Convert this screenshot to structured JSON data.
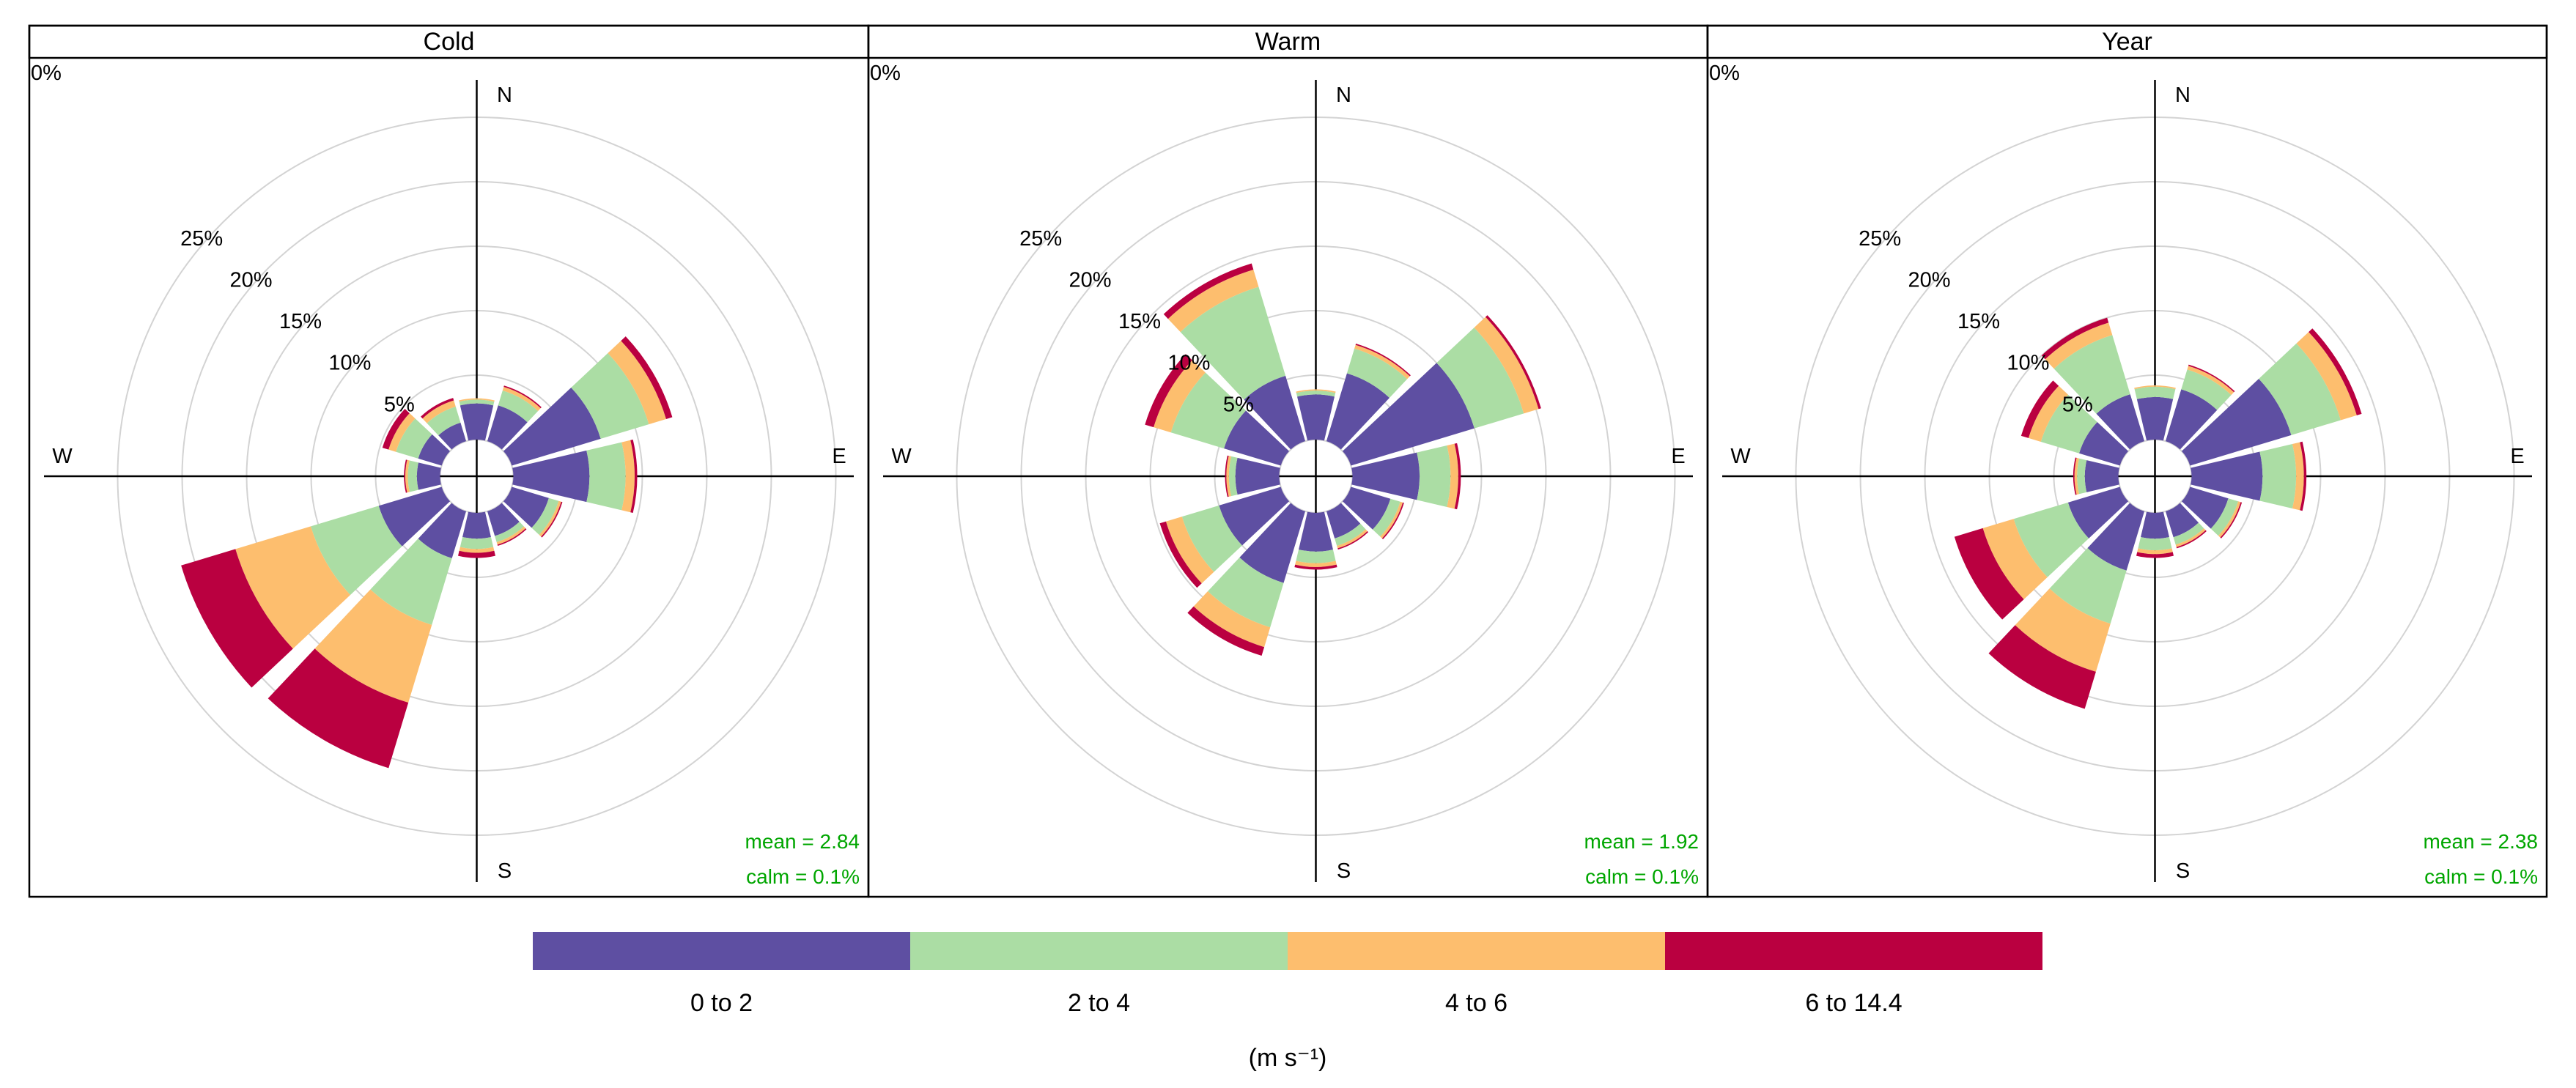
{
  "chart_data": {
    "type": "windrose",
    "radial_unit": "%",
    "radial_ticks": [
      0,
      5,
      10,
      15,
      20,
      25
    ],
    "radial_tick_labels": [
      "0%",
      "5%",
      "10%",
      "15%",
      "20%",
      "25%"
    ],
    "directions": [
      0,
      30,
      60,
      90,
      120,
      150,
      180,
      210,
      240,
      270,
      300,
      330
    ],
    "compass_labels": [
      "N",
      "E",
      "S",
      "W"
    ],
    "speed_bins": [
      {
        "label": "0 to 2",
        "color": "#5E4FA2"
      },
      {
        "label": "2 to 4",
        "color": "#ABDDA4"
      },
      {
        "label": "4 to 6",
        "color": "#FDBE6E"
      },
      {
        "label": "6 to 14.4",
        "color": "#BA0040"
      }
    ],
    "legend_title": "(m s⁻¹)",
    "legend_position": "bottom",
    "panels": [
      {
        "title": "Cold",
        "mean_text": "mean = 2.84",
        "calm_text": "calm = 0.1%",
        "values": [
          [
            2.8,
            0.3,
            0.1,
            0.0
          ],
          [
            2.9,
            1.2,
            0.3,
            0.1
          ],
          [
            7.2,
            3.9,
            1.4,
            0.5
          ],
          [
            5.9,
            2.8,
            0.7,
            0.2
          ],
          [
            3.0,
            0.8,
            0.2,
            0.1
          ],
          [
            2.0,
            0.5,
            0.2,
            0.1
          ],
          [
            2.0,
            0.8,
            0.3,
            0.4
          ],
          [
            3.8,
            5.4,
            6.3,
            5.3
          ],
          [
            5.1,
            5.5,
            6.1,
            4.4
          ],
          [
            1.8,
            0.7,
            0.2,
            0.1
          ],
          [
            1.9,
            1.8,
            0.6,
            0.5
          ],
          [
            1.5,
            1.3,
            0.5,
            0.2
          ]
        ]
      },
      {
        "title": "Warm",
        "mean_text": "mean = 1.92",
        "calm_text": "calm = 0.1%",
        "values": [
          [
            3.5,
            0.3,
            0.1,
            0.0
          ],
          [
            5.5,
            2.0,
            0.3,
            0.1
          ],
          [
            10.0,
            4.0,
            1.2,
            0.2
          ],
          [
            5.2,
            2.4,
            0.6,
            0.2
          ],
          [
            3.2,
            0.8,
            0.2,
            0.1
          ],
          [
            2.2,
            0.6,
            0.2,
            0.1
          ],
          [
            3.0,
            0.9,
            0.3,
            0.2
          ],
          [
            5.8,
            3.6,
            1.6,
            0.7
          ],
          [
            5.0,
            3.0,
            1.3,
            0.5
          ],
          [
            3.4,
            0.5,
            0.2,
            0.1
          ],
          [
            4.6,
            4.3,
            1.4,
            0.7
          ],
          [
            5.3,
            7.2,
            1.4,
            0.5
          ]
        ]
      },
      {
        "title": "Year",
        "mean_text": "mean = 2.38",
        "calm_text": "calm = 0.1%",
        "values": [
          [
            3.3,
            0.8,
            0.1,
            0.0
          ],
          [
            4.2,
            1.6,
            0.3,
            0.1
          ],
          [
            8.2,
            4.0,
            1.3,
            0.4
          ],
          [
            5.5,
            2.6,
            0.6,
            0.2
          ],
          [
            3.1,
            0.8,
            0.2,
            0.1
          ],
          [
            2.1,
            0.6,
            0.2,
            0.1
          ],
          [
            2.0,
            0.9,
            0.3,
            0.3
          ],
          [
            4.8,
            4.3,
            3.9,
            3.0
          ],
          [
            4.2,
            4.4,
            2.5,
            2.3
          ],
          [
            2.6,
            0.6,
            0.2,
            0.1
          ],
          [
            3.3,
            3.1,
            1.0,
            0.6
          ],
          [
            3.8,
            4.8,
            1.0,
            0.4
          ]
        ]
      }
    ]
  }
}
